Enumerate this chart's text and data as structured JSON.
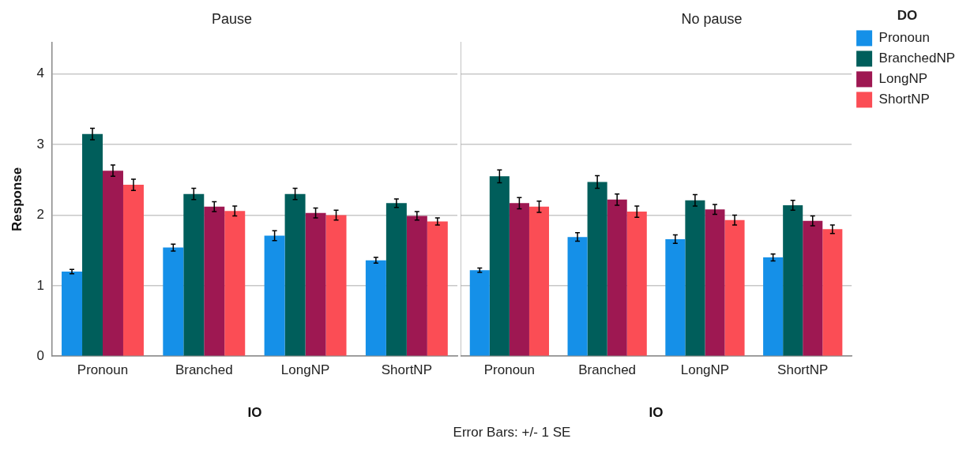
{
  "chart_data": [
    {
      "type": "bar",
      "title": "Pause",
      "xlabel": "IO",
      "ylabel": "Response",
      "categories": [
        "Pronoun",
        "Branched",
        "LongNP",
        "ShortNP"
      ],
      "ylim": [
        0,
        4.45
      ],
      "yticks": [
        0,
        1,
        2,
        3,
        4
      ],
      "grid": "y",
      "legend": false,
      "series": [
        {
          "color": "#1590e8",
          "values": [
            1.2,
            1.54,
            1.71,
            1.36
          ],
          "errors": [
            0.03,
            0.05,
            0.07,
            0.04
          ]
        },
        {
          "color": "#005e5b",
          "values": [
            3.15,
            2.3,
            2.3,
            2.17
          ],
          "errors": [
            0.08,
            0.08,
            0.08,
            0.06
          ]
        },
        {
          "color": "#9e1852",
          "values": [
            2.63,
            2.12,
            2.03,
            1.99
          ],
          "errors": [
            0.08,
            0.07,
            0.07,
            0.06
          ]
        },
        {
          "color": "#fb4d55",
          "values": [
            2.43,
            2.06,
            2.0,
            1.91
          ],
          "errors": [
            0.08,
            0.07,
            0.07,
            0.05
          ]
        }
      ]
    },
    {
      "type": "bar",
      "title": "No pause",
      "xlabel": "IO",
      "categories": [
        "Pronoun",
        "Branched",
        "LongNP",
        "ShortNP"
      ],
      "ylim": [
        0,
        4.45
      ],
      "yticks": [
        0,
        1,
        2,
        3,
        4
      ],
      "tick_labels": "x",
      "grid": "y",
      "legend": "right",
      "legend_title": "DO",
      "annotations": [
        "Error Bars: +/- 1 SE"
      ],
      "series": [
        {
          "name": "Pronoun",
          "color": "#1590e8",
          "values": [
            1.22,
            1.69,
            1.66,
            1.4
          ],
          "errors": [
            0.03,
            0.06,
            0.06,
            0.05
          ]
        },
        {
          "name": "BranchedNP",
          "color": "#005e5b",
          "values": [
            2.55,
            2.47,
            2.21,
            2.14
          ],
          "errors": [
            0.09,
            0.09,
            0.08,
            0.07
          ]
        },
        {
          "name": "LongNP",
          "color": "#9e1852",
          "values": [
            2.17,
            2.22,
            2.08,
            1.92
          ],
          "errors": [
            0.08,
            0.08,
            0.07,
            0.07
          ]
        },
        {
          "name": "ShortNP",
          "color": "#fb4d55",
          "values": [
            2.12,
            2.05,
            1.93,
            1.8
          ],
          "errors": [
            0.08,
            0.08,
            0.07,
            0.06
          ]
        }
      ]
    }
  ]
}
